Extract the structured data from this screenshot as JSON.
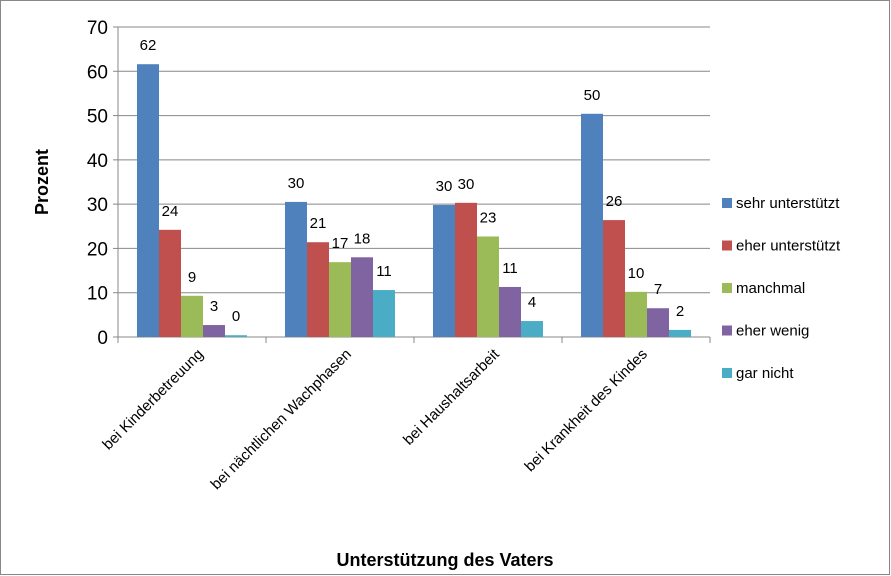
{
  "chart_data": {
    "type": "bar",
    "x_label": "Unterstützung des Vaters",
    "y_label": "Prozent",
    "categories": [
      "bei Kinderbetreuung",
      "bei nächtlichen Wachphasen",
      "bei Haushaltsarbeit",
      "bei Krankheit des Kindes"
    ],
    "series": [
      {
        "name": "sehr unterstützt",
        "color": "#4f81bd",
        "values": [
          61.6,
          30.5,
          29.8,
          50.4
        ],
        "value_labels": [
          "62",
          "30",
          "30",
          "50"
        ]
      },
      {
        "name": "eher unterstützt",
        "color": "#c0504d",
        "values": [
          24.2,
          21.4,
          30.3,
          26.4
        ],
        "value_labels": [
          "24",
          "21",
          "30",
          "26"
        ]
      },
      {
        "name": "manchmal",
        "color": "#9bbb59",
        "values": [
          9.3,
          16.9,
          22.7,
          10.2
        ],
        "value_labels": [
          "9",
          "17",
          "23",
          "10"
        ]
      },
      {
        "name": "eher wenig",
        "color": "#8064a2",
        "values": [
          2.7,
          18.0,
          11.3,
          6.5
        ],
        "value_labels": [
          "3",
          "18",
          "11",
          "7"
        ]
      },
      {
        "name": "gar nicht",
        "color": "#4bacc6",
        "values": [
          0.4,
          10.6,
          3.6,
          1.6
        ],
        "value_labels": [
          "0",
          "11",
          "4",
          "2"
        ]
      }
    ],
    "ylim": [
      0,
      70
    ],
    "yticks": [
      0,
      10,
      20,
      30,
      40,
      50,
      60,
      70
    ],
    "grid": true,
    "legend": "right"
  }
}
